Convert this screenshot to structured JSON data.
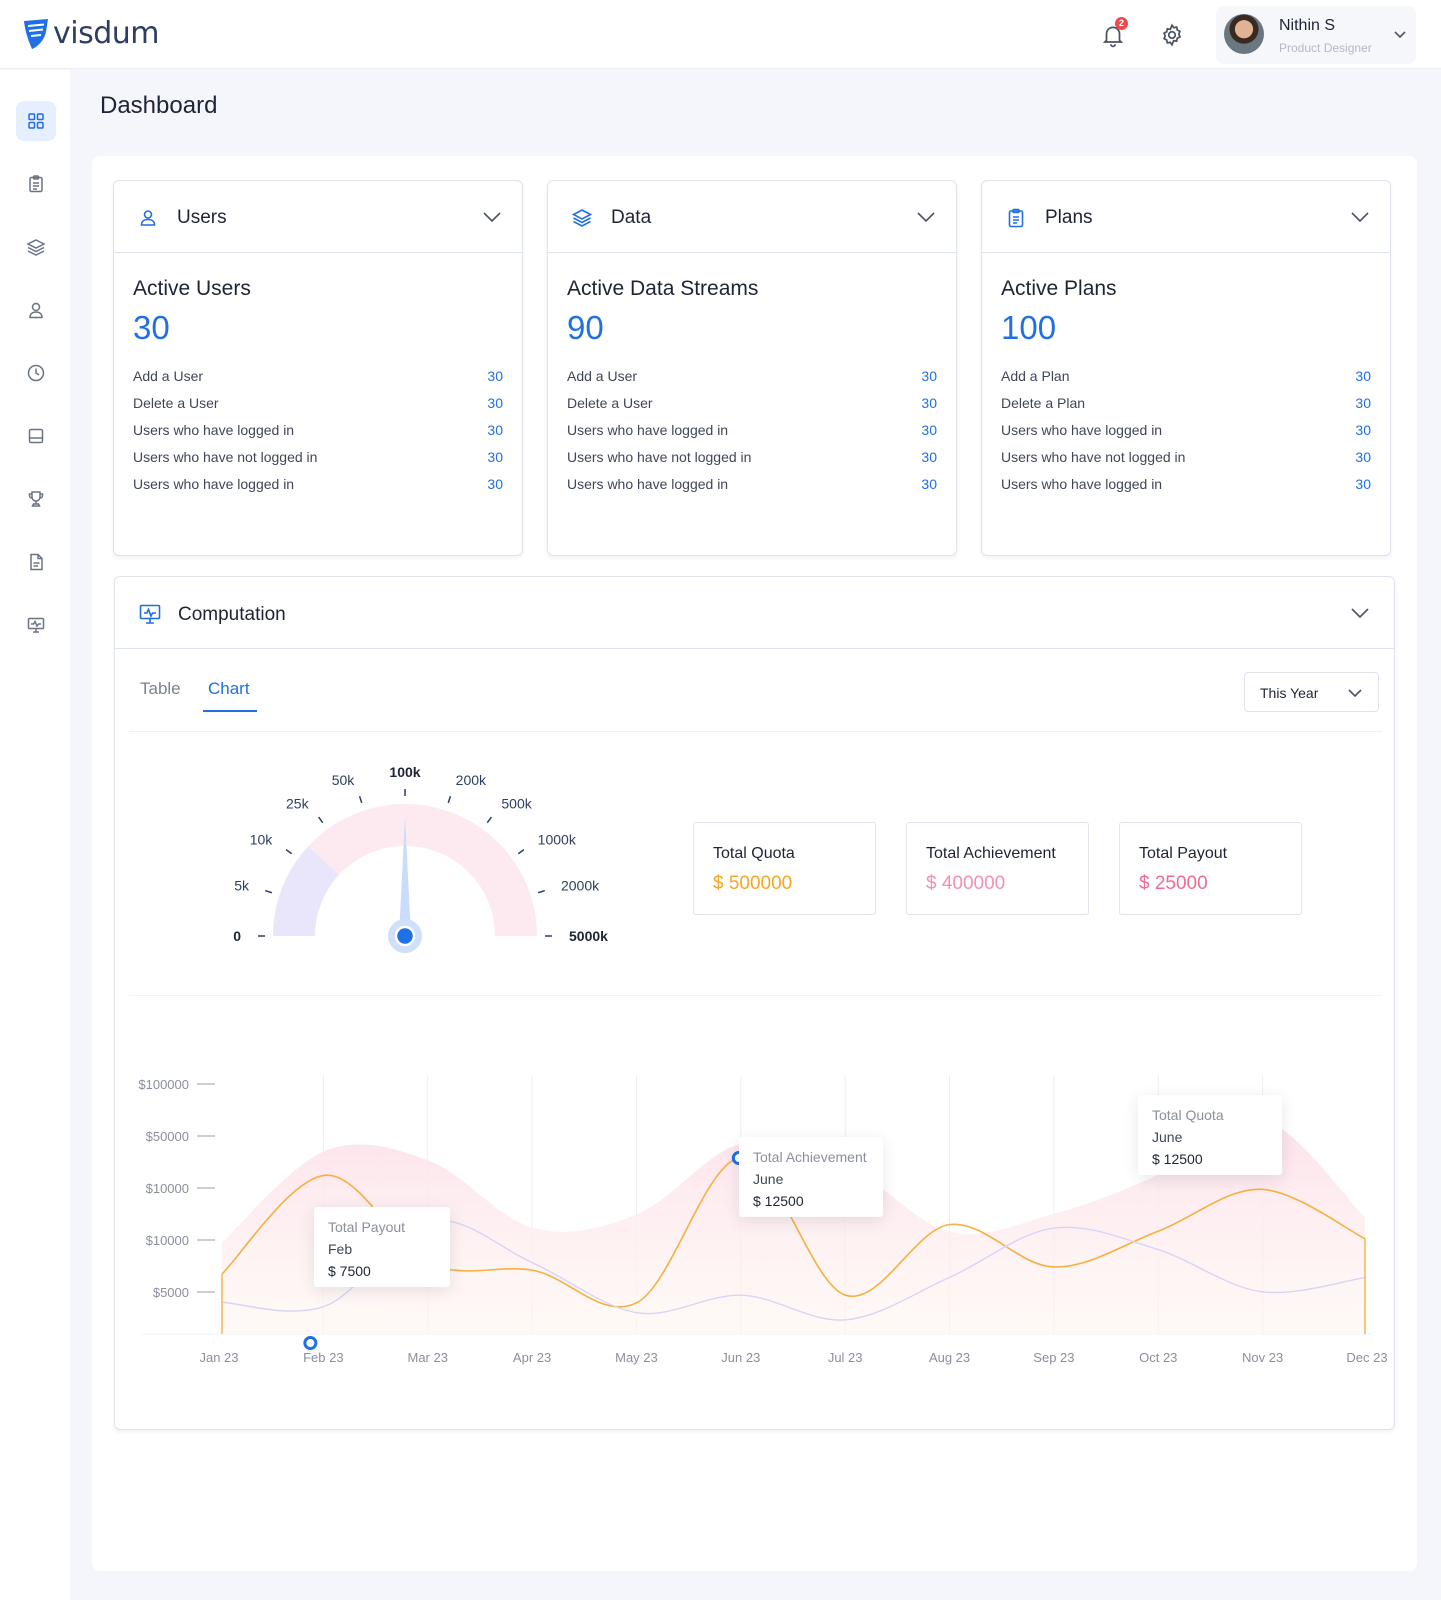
{
  "brand": {
    "name": "visdum",
    "color": "#1f6fe5"
  },
  "header": {
    "notifications_count": "2",
    "user": {
      "name": "Nithin S",
      "role": "Product Designer"
    }
  },
  "sidebar": {
    "items": [
      {
        "icon": "grid-icon",
        "active": true
      },
      {
        "icon": "clipboard-icon",
        "active": false
      },
      {
        "icon": "layers-icon",
        "active": false
      },
      {
        "icon": "user-icon",
        "active": false
      },
      {
        "icon": "clock-icon",
        "active": false
      },
      {
        "icon": "inbox-icon",
        "active": false
      },
      {
        "icon": "trophy-icon",
        "active": false
      },
      {
        "icon": "document-icon",
        "active": false
      },
      {
        "icon": "monitor-icon",
        "active": false
      }
    ]
  },
  "page": {
    "title": "Dashboard"
  },
  "cards": [
    {
      "title": "Users",
      "icon": "user-icon",
      "subtitle": "Active Users",
      "value": "30",
      "rows": [
        {
          "label": "Add a User",
          "value": "30"
        },
        {
          "label": "Delete a User",
          "value": "30"
        },
        {
          "label": "Users who have logged in",
          "value": "30"
        },
        {
          "label": "Users who have not logged in",
          "value": "30"
        },
        {
          "label": "Users who have logged in",
          "value": "30"
        }
      ]
    },
    {
      "title": "Data",
      "icon": "layers-icon",
      "subtitle": "Active Data Streams",
      "value": "90",
      "rows": [
        {
          "label": "Add a User",
          "value": "30"
        },
        {
          "label": "Delete a User",
          "value": "30"
        },
        {
          "label": "Users who have logged in",
          "value": "30"
        },
        {
          "label": "Users who have not logged in",
          "value": "30"
        },
        {
          "label": "Users who have logged in",
          "value": "30"
        }
      ]
    },
    {
      "title": "Plans",
      "icon": "clipboard-icon",
      "subtitle": "Active Plans",
      "value": "100",
      "rows": [
        {
          "label": "Add a Plan",
          "value": "30"
        },
        {
          "label": "Delete a Plan",
          "value": "30"
        },
        {
          "label": "Users who have logged in",
          "value": "30"
        },
        {
          "label": "Users who have not logged in",
          "value": "30"
        },
        {
          "label": "Users who have logged in",
          "value": "30"
        }
      ]
    }
  ],
  "computation": {
    "title": "Computation",
    "tabs": {
      "table": "Table",
      "chart": "Chart",
      "active": "Chart"
    },
    "period_select": "This Year",
    "metrics": [
      {
        "title": "Total Quota",
        "value": "$ 500000",
        "color": "#f5a623"
      },
      {
        "title": "Total Achievement",
        "value": "$ 400000",
        "color": "#f48fb1"
      },
      {
        "title": "Total Payout",
        "value": "$ 25000",
        "color": "#f06a92"
      }
    ],
    "tooltips": [
      {
        "series": "Total Payout",
        "month": "Feb",
        "value": "$ 7500"
      },
      {
        "series": "Total Achievement",
        "month": "June",
        "value": "$ 12500"
      },
      {
        "series": "Total Quota",
        "month": "June",
        "value": "$ 12500"
      }
    ]
  },
  "chart_data": [
    {
      "type": "gauge",
      "ticks": [
        "0",
        "5k",
        "10k",
        "25k",
        "50k",
        "100k",
        "200k",
        "500k",
        "1000k",
        "2000k",
        "5000k"
      ],
      "highlighted_ticks": [
        "0",
        "100k",
        "5000k"
      ],
      "value_tick": "100k",
      "filled_segment_end_tick": "10k",
      "colors": {
        "filled": "#e9e6fb",
        "remaining": "#fdeaf0",
        "needle": "#1f6fe5"
      }
    },
    {
      "type": "area",
      "categories": [
        "Jan 23",
        "Feb 23",
        "Mar 23",
        "Apr 23",
        "May 23",
        "Jun 23",
        "Jul 23",
        "Aug 23",
        "Sep 23",
        "Oct 23",
        "Nov 23",
        "Dec 23"
      ],
      "y_ticks": [
        "$100000",
        "$50000",
        "$10000",
        "$10000",
        "$5000"
      ],
      "grid": "vertical",
      "series": [
        {
          "color": "#fce4ee",
          "fill": true,
          "values": [
            1.3,
            2.6,
            2.45,
            1.5,
            1.7,
            2.7,
            2.4,
            1.45,
            1.7,
            2.25,
            3.05,
            1.65
          ]
        },
        {
          "color": "#f5b041",
          "fill": false,
          "values": [
            0.85,
            2.25,
            1.0,
            0.9,
            0.45,
            2.5,
            0.55,
            1.55,
            0.95,
            1.45,
            2.05,
            1.35
          ]
        },
        {
          "color": "#d8d4f5",
          "fill": false,
          "values": [
            0.45,
            0.4,
            1.6,
            1.0,
            0.3,
            0.55,
            0.2,
            0.8,
            1.5,
            1.2,
            0.6,
            0.8
          ]
        }
      ]
    }
  ]
}
